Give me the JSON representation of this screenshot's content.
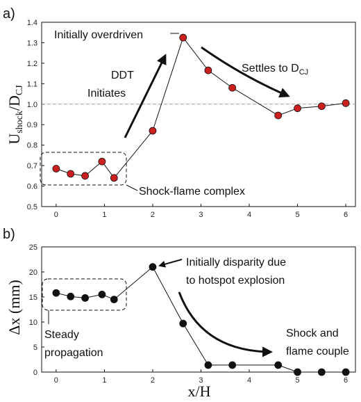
{
  "chart_data": [
    {
      "type": "line",
      "panel": "a)",
      "ylabel_main": "U",
      "ylabel_sub1": "shock",
      "ylabel_mid": "/D",
      "ylabel_sub2": "CJ",
      "xlim": [
        -0.3,
        6.2
      ],
      "ylim": [
        0.5,
        1.4
      ],
      "xticks": [
        "0",
        "1",
        "2",
        "3",
        "4",
        "5",
        "6"
      ],
      "yticks": [
        "0.5",
        "0.6",
        "0.7",
        "0.8",
        "0.9",
        "1.0",
        "1.1",
        "1.2",
        "1.3",
        "1.4"
      ],
      "reference_line": 1.0,
      "series": [
        {
          "x": [
            0.0,
            0.3,
            0.6,
            0.95,
            1.2,
            2.0,
            2.63,
            3.15,
            3.65,
            4.6,
            5.0,
            5.5,
            6.0
          ],
          "y": [
            0.685,
            0.66,
            0.65,
            0.72,
            0.64,
            0.87,
            1.325,
            1.165,
            1.08,
            0.945,
            0.98,
            0.99,
            1.005
          ]
        }
      ],
      "annotations": {
        "overdriven": "Initially overdriven",
        "ddt_line1": "DDT",
        "ddt_line2": "Initiates",
        "settles_main": "Settles to D",
        "settles_sub": "CJ",
        "shock_flame": "Shock-flame complex"
      },
      "marker_color": "#cc1f1f"
    },
    {
      "type": "line",
      "panel": "b)",
      "xlabel": "x/H",
      "ylabel": "Δx (mm)",
      "xlim": [
        -0.3,
        6.2
      ],
      "ylim": [
        0,
        25
      ],
      "xticks": [
        "0",
        "1",
        "2",
        "3",
        "4",
        "5",
        "6"
      ],
      "yticks": [
        "0",
        "5",
        "10",
        "15",
        "20",
        "25"
      ],
      "series": [
        {
          "x": [
            0.0,
            0.3,
            0.6,
            0.95,
            1.2,
            2.0,
            2.63,
            3.15,
            3.65,
            4.6,
            5.0,
            5.5,
            6.0
          ],
          "y": [
            15.8,
            15.1,
            14.8,
            15.5,
            14.5,
            21.0,
            9.7,
            1.4,
            1.4,
            1.4,
            0.0,
            0.0,
            0.0
          ]
        }
      ],
      "annotations": {
        "disparity_line1": "Initially disparity due",
        "disparity_line2": "to hotspot explosion",
        "steady_line1": "Steady",
        "steady_line2": "propagation",
        "couple_line1": "Shock and",
        "couple_line2": "flame couple"
      },
      "marker_color": "#111111"
    }
  ]
}
